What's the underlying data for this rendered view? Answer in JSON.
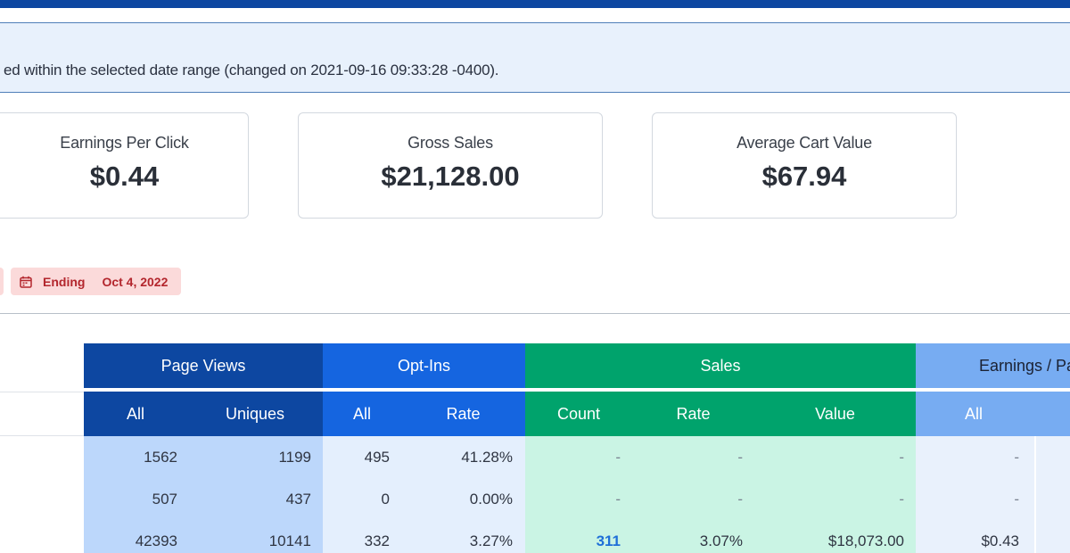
{
  "notice": {
    "text": "ed within the selected date range (changed on 2021-09-16 09:33:28 -0400)."
  },
  "cards": [
    {
      "label": "Earnings Per Click",
      "value": "$0.44"
    },
    {
      "label": "Gross Sales",
      "value": "$21,128.00"
    },
    {
      "label": "Average Cart Value",
      "value": "$67.94"
    }
  ],
  "filter": {
    "icon": "calendar-icon",
    "label": "Ending",
    "date": "Oct 4, 2022"
  },
  "table": {
    "groups": {
      "page_views": "Page Views",
      "opt_ins": "Opt-Ins",
      "sales": "Sales",
      "earnings": "Earnings / Pa"
    },
    "columns": {
      "pv_all": "All",
      "pv_uniques": "Uniques",
      "op_all": "All",
      "op_rate": "Rate",
      "sa_count": "Count",
      "sa_rate": "Rate",
      "sa_value": "Value",
      "ea_all": "All"
    },
    "rows": [
      {
        "pv_all": "1562",
        "pv_uniques": "1199",
        "op_all": "495",
        "op_rate": "41.28%",
        "sa_count": "-",
        "sa_rate": "-",
        "sa_value": "-",
        "ea_all": "-"
      },
      {
        "pv_all": "507",
        "pv_uniques": "437",
        "op_all": "0",
        "op_rate": "0.00%",
        "sa_count": "-",
        "sa_rate": "-",
        "sa_value": "-",
        "ea_all": "-"
      },
      {
        "pv_all": "42393",
        "pv_uniques": "10141",
        "op_all": "332",
        "op_rate": "3.27%",
        "sa_count": "311",
        "sa_rate": "3.07%",
        "sa_value": "$18,073.00",
        "ea_all": "$0.43"
      }
    ]
  },
  "colors": {
    "page_views": "#0d47a1",
    "opt_ins": "#1565e0",
    "sales": "#00a36c",
    "earnings": "#77acf2",
    "chip_text": "#b3262d"
  }
}
